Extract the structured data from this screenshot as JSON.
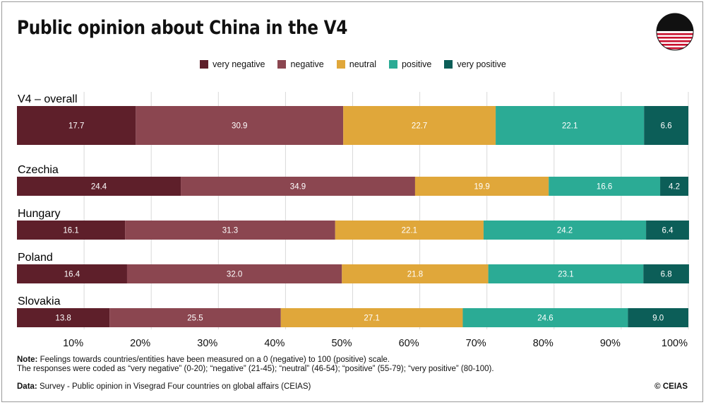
{
  "title": "Public opinion about China in the V4",
  "chart_data": {
    "type": "bar",
    "orientation": "horizontal",
    "stacked": true,
    "title": "Public opinion about China in the V4",
    "categories": [
      "V4 – overall",
      "Czechia",
      "Hungary",
      "Poland",
      "Slovakia"
    ],
    "series": [
      {
        "name": "very negative",
        "color": "#5e1f2a",
        "values": [
          17.7,
          24.4,
          16.1,
          16.4,
          13.8
        ]
      },
      {
        "name": "negative",
        "color": "#8b4650",
        "values": [
          30.9,
          34.9,
          31.3,
          32.0,
          25.5
        ]
      },
      {
        "name": "neutral",
        "color": "#e0a73a",
        "values": [
          22.7,
          19.9,
          22.1,
          21.8,
          27.1
        ]
      },
      {
        "name": "positive",
        "color": "#2bab95",
        "values": [
          22.1,
          16.6,
          24.2,
          23.1,
          24.6
        ]
      },
      {
        "name": "very positive",
        "color": "#0c5e58",
        "values": [
          6.6,
          4.2,
          6.4,
          6.8,
          9.0
        ]
      }
    ],
    "value_labels": [
      [
        "17.7",
        "30.9",
        "22.7",
        "22.1",
        "6.6"
      ],
      [
        "24.4",
        "34.9",
        "19.9",
        "16.6",
        "4.2"
      ],
      [
        "16.1",
        "31.3",
        "22.1",
        "24.2",
        "6.4"
      ],
      [
        "16.4",
        "32.0",
        "21.8",
        "23.1",
        "6.8"
      ],
      [
        "13.8",
        "25.5",
        "27.1",
        "24.6",
        "9.0"
      ]
    ],
    "xlim": [
      0,
      100
    ],
    "xticks": [
      10,
      20,
      30,
      40,
      50,
      60,
      70,
      80,
      90,
      100
    ],
    "xtick_labels": [
      "10%",
      "20%",
      "30%",
      "40%",
      "50%",
      "60%",
      "70%",
      "80%",
      "90%",
      "100%"
    ],
    "legend_position": "top-center",
    "grid": true
  },
  "notes": {
    "note_label": "Note:",
    "note_line1": " Feelings towards countries/entities have been measured on a 0 (negative) to 100 (positive) scale.",
    "note_line2": "The responses were coded as “very negative” (0-20); “negative” (21-45); “neutral” (46-54); “positive” (55-79); “very positive” (80-100).",
    "data_label": "Data:",
    "data_text": " Survey - Public opinion in Visegrad Four countries on global affairs (CEIAS)",
    "copyright": "© CEIAS"
  },
  "logo_colors": {
    "dark": "#111111",
    "red": "#c8102e",
    "white": "#ffffff"
  }
}
